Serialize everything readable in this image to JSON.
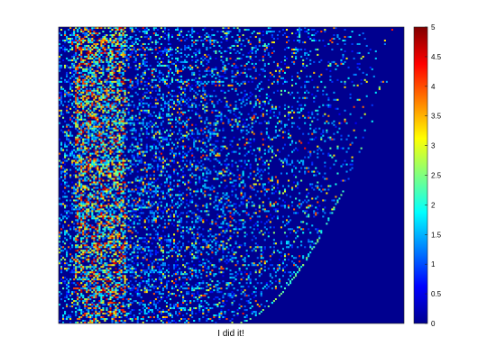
{
  "chart_data": {
    "type": "heatmap",
    "title": "",
    "xlabel": "I did it!",
    "ylabel": "",
    "colormap": "jet",
    "clim": [
      0,
      5
    ],
    "colorbar_ticks": [
      "0",
      "0.5",
      "1",
      "1.5",
      "2",
      "2.5",
      "3",
      "3.5",
      "4",
      "4.5",
      "5"
    ],
    "x_tick_labels": "none",
    "y_tick_labels": "none",
    "background_value": 0,
    "pattern": {
      "description_of_values": "sparse ratings matrix; dense non-zero values concentrated in left columns, sparsity increasing toward the right, lower-right triangular region entirely zero",
      "dense_band_columns_fraction": [
        0.06,
        0.18
      ],
      "empty_region_boundary": "curved edge from lower-middle to upper-right"
    }
  },
  "colors": {
    "background": "#00008f",
    "figure": "#ffffff"
  }
}
